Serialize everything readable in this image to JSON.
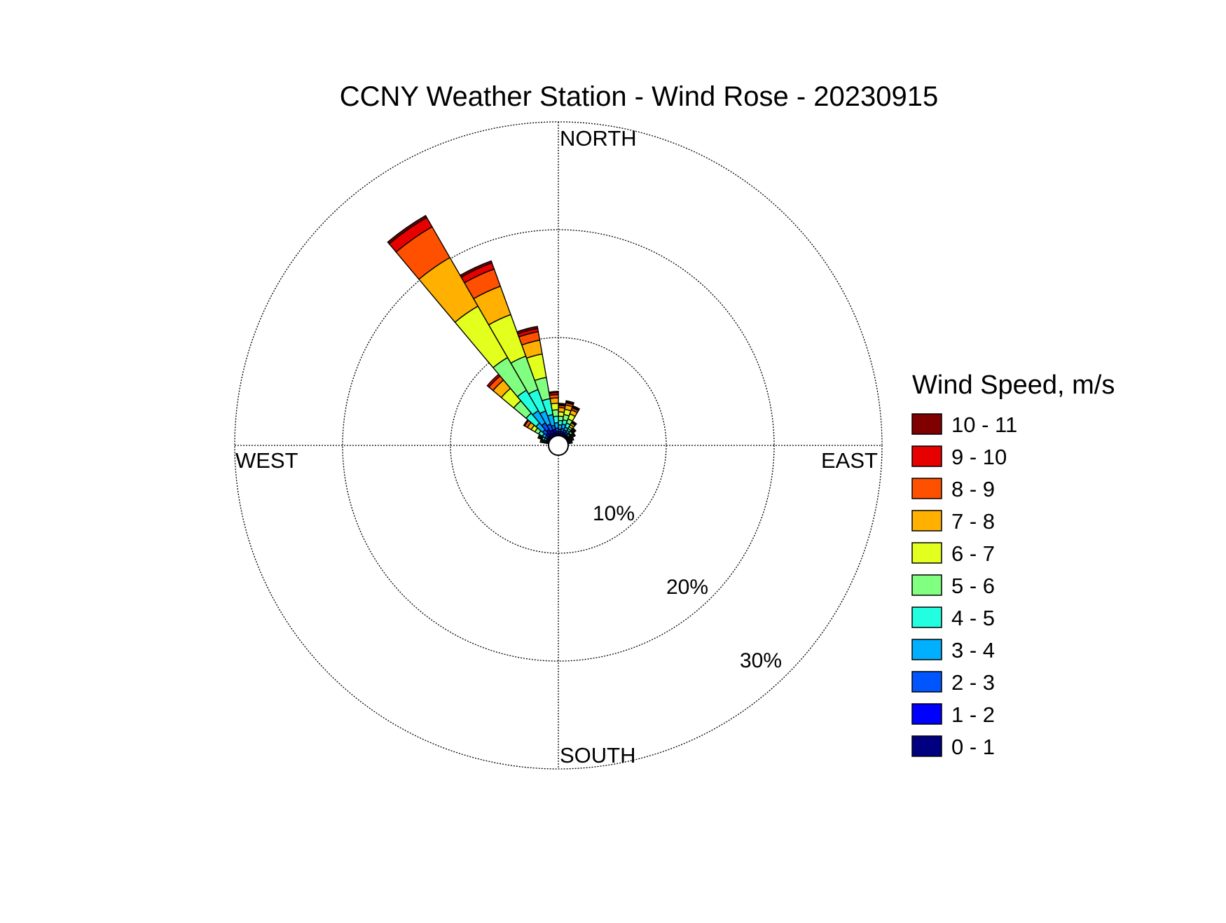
{
  "chart_data": {
    "type": "wind-rose",
    "title": "CCNY Weather Station - Wind Rose - 20230915",
    "legend": {
      "title": "Wind Speed, m/s",
      "placement": "right"
    },
    "compass_labels": {
      "north": "NORTH",
      "east": "EAST",
      "south": "SOUTH",
      "west": "WEST"
    },
    "radial_axis": {
      "unit": "%",
      "rings": [
        10,
        20,
        30
      ],
      "ring_labels": [
        "10%",
        "20%",
        "30%"
      ],
      "max": 30
    },
    "speed_bins": [
      {
        "label": "0 - 1",
        "color": "#000080"
      },
      {
        "label": "1 - 2",
        "color": "#0000ff"
      },
      {
        "label": "2 - 3",
        "color": "#0055ff"
      },
      {
        "label": "3 - 4",
        "color": "#00b0ff"
      },
      {
        "label": "4 - 5",
        "color": "#22ffe0"
      },
      {
        "label": "5 - 6",
        "color": "#80ff80"
      },
      {
        "label": "6 - 7",
        "color": "#e2ff1e"
      },
      {
        "label": "7 - 8",
        "color": "#ffb000"
      },
      {
        "label": "8 - 9",
        "color": "#ff5000"
      },
      {
        "label": "9 - 10",
        "color": "#e60000"
      },
      {
        "label": "10 - 11",
        "color": "#800000"
      }
    ],
    "direction_width_deg": 10,
    "directions": [
      {
        "deg": 5,
        "cumulative": [
          0.2,
          0.4,
          0.6,
          1.0,
          1.4,
          1.8,
          2.2,
          2.6,
          2.8,
          2.9,
          3.0
        ]
      },
      {
        "deg": 15,
        "cumulative": [
          0.2,
          0.4,
          0.7,
          1.1,
          1.5,
          2.0,
          2.5,
          2.9,
          3.1,
          3.2,
          3.3
        ]
      },
      {
        "deg": 25,
        "cumulative": [
          0.2,
          0.4,
          0.6,
          0.9,
          1.3,
          1.7,
          2.2,
          2.6,
          2.8,
          2.9,
          3.0
        ]
      },
      {
        "deg": 35,
        "cumulative": [
          0.2,
          0.3,
          0.5,
          0.7,
          0.9,
          1.1,
          1.3,
          1.5,
          1.6,
          1.7,
          1.7
        ]
      },
      {
        "deg": 45,
        "cumulative": [
          0.1,
          0.2,
          0.3,
          0.5,
          0.6,
          0.8,
          0.9,
          1.0,
          1.1,
          1.1,
          1.2
        ]
      },
      {
        "deg": 55,
        "cumulative": [
          0.1,
          0.2,
          0.3,
          0.4,
          0.5,
          0.6,
          0.7,
          0.8,
          0.8,
          0.9,
          0.9
        ]
      },
      {
        "deg": 65,
        "cumulative": [
          0.1,
          0.1,
          0.2,
          0.3,
          0.4,
          0.5,
          0.5,
          0.6,
          0.6,
          0.6,
          0.6
        ]
      },
      {
        "deg": 75,
        "cumulative": [
          0.1,
          0.1,
          0.2,
          0.2,
          0.3,
          0.3,
          0.4,
          0.4,
          0.4,
          0.4,
          0.4
        ]
      },
      {
        "deg": 285,
        "cumulative": [
          0.1,
          0.2,
          0.3,
          0.4,
          0.5,
          0.6,
          0.7,
          0.8,
          0.8,
          0.8,
          0.8
        ]
      },
      {
        "deg": 295,
        "cumulative": [
          0.1,
          0.2,
          0.3,
          0.5,
          0.7,
          0.8,
          0.9,
          1.0,
          1.1,
          1.1,
          1.1
        ]
      },
      {
        "deg": 305,
        "cumulative": [
          0.2,
          0.3,
          0.5,
          0.8,
          1.2,
          1.6,
          2.0,
          2.4,
          2.7,
          2.8,
          2.8
        ]
      },
      {
        "deg": 315,
        "cumulative": [
          0.3,
          0.6,
          1.0,
          1.8,
          3.0,
          4.5,
          6.0,
          7.0,
          7.5,
          7.7,
          7.7
        ]
      },
      {
        "deg": 325,
        "cumulative": [
          0.4,
          0.8,
          1.5,
          2.8,
          5.0,
          8.5,
          14.0,
          19.2,
          22.5,
          23.5,
          23.7
        ]
      },
      {
        "deg": 335,
        "cumulative": [
          0.3,
          0.6,
          1.2,
          2.5,
          4.6,
          7.9,
          12.0,
          14.8,
          16.5,
          17.1,
          17.3
        ]
      },
      {
        "deg": 345,
        "cumulative": [
          0.3,
          0.6,
          1.0,
          2.0,
          3.5,
          5.5,
          7.7,
          9.0,
          9.8,
          10.1,
          10.3
        ]
      },
      {
        "deg": 355,
        "cumulative": [
          0.2,
          0.4,
          0.7,
          1.2,
          1.8,
          2.4,
          3.0,
          3.5,
          3.8,
          4.0,
          4.1
        ]
      }
    ]
  }
}
